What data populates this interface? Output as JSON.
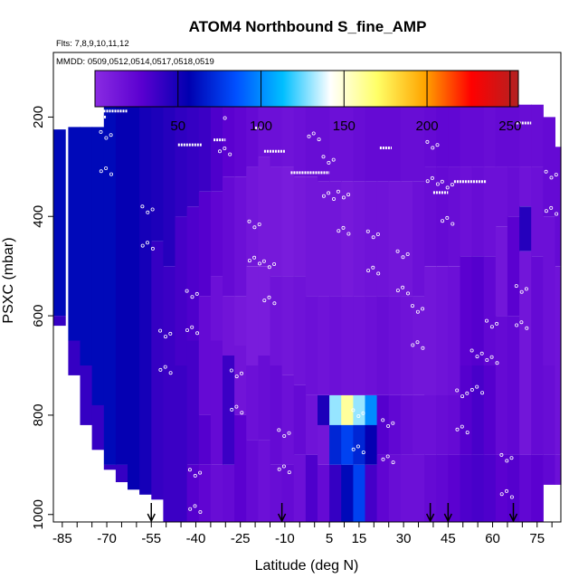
{
  "chart_data": {
    "type": "heatmap",
    "title": "ATOM4 Northbound S_fine_AMP",
    "flights_note": "Flts: 7,8,9,10,11,12",
    "dates_note": "MMDD: 0509,0512,0514,0517,0518,0519",
    "xlabel": "Latitude (deg N)",
    "ylabel": "PSXC (mbar)",
    "xlim": [
      -88,
      83
    ],
    "ylim": [
      1015,
      70
    ],
    "x_ticks": [
      -85,
      -70,
      -55,
      -40,
      -25,
      -10,
      5,
      15,
      30,
      45,
      60,
      75
    ],
    "y_ticks": [
      200,
      400,
      600,
      800,
      1000
    ],
    "colorbar": {
      "range": [
        0,
        255
      ],
      "ticks": [
        50,
        100,
        150,
        200,
        250
      ],
      "colors": [
        "#8a2be2",
        "#5a00d0",
        "#0000b0",
        "#0050ff",
        "#00bfff",
        "#ffffff",
        "#ffff66",
        "#ffa500",
        "#ff0000",
        "#b22222"
      ]
    },
    "arrow_markers_latitude": [
      -55,
      -11,
      39,
      45,
      67
    ],
    "flight_track_points_lat": [
      -70,
      -56,
      -41,
      -26,
      -10,
      5,
      20,
      35,
      50,
      65,
      80,
      -50,
      -30,
      -15,
      10,
      25,
      40,
      55,
      70,
      -40,
      -20,
      0,
      15,
      30,
      45,
      60
    ],
    "flight_track_points_p": [
      300,
      450,
      620,
      780,
      900,
      350,
      500,
      650,
      820,
      950,
      380,
      700,
      260,
      560,
      420,
      880,
      320,
      740,
      610,
      980,
      480,
      230,
      860,
      540,
      400,
      680
    ],
    "flight_level_segments": [
      {
        "lat": [
          -81,
          -70
        ],
        "p": 200
      },
      {
        "lat": [
          -72,
          -63
        ],
        "p": 188
      },
      {
        "lat": [
          -46,
          -38
        ],
        "p": 256
      },
      {
        "lat": [
          -34,
          -30
        ],
        "p": 246
      },
      {
        "lat": [
          -20,
          -18
        ],
        "p": 222
      },
      {
        "lat": [
          -17,
          -10
        ],
        "p": 269
      },
      {
        "lat": [
          -8,
          5
        ],
        "p": 312
      },
      {
        "lat": [
          22,
          26
        ],
        "p": 262
      },
      {
        "lat": [
          40,
          45
        ],
        "p": 352
      },
      {
        "lat": [
          47,
          58
        ],
        "p": 330
      },
      {
        "lat": [
          68,
          73
        ],
        "p": 212
      }
    ],
    "columns": [
      {
        "lat": -88,
        "top": 225,
        "bottom": 620,
        "seg": [
          [
            225,
            60
          ],
          [
            600,
            40
          ]
        ]
      },
      {
        "lat": -83,
        "top": 220,
        "bottom": 720,
        "seg": [
          [
            220,
            60
          ],
          [
            650,
            40
          ]
        ]
      },
      {
        "lat": -79,
        "top": 220,
        "bottom": 820,
        "seg": [
          [
            220,
            60
          ],
          [
            700,
            40
          ]
        ]
      },
      {
        "lat": -75,
        "top": 220,
        "bottom": 870,
        "seg": [
          [
            220,
            60
          ],
          [
            780,
            40
          ]
        ]
      },
      {
        "lat": -71,
        "top": 175,
        "bottom": 910,
        "seg": [
          [
            175,
            60
          ],
          [
            900,
            40
          ]
        ]
      },
      {
        "lat": -67,
        "top": 175,
        "bottom": 935,
        "seg": [
          [
            175,
            55
          ],
          [
            900,
            40
          ]
        ]
      },
      {
        "lat": -63,
        "top": 175,
        "bottom": 950,
        "seg": [
          [
            175,
            55
          ],
          [
            950,
            40
          ]
        ]
      },
      {
        "lat": -59,
        "top": 175,
        "bottom": 960,
        "seg": [
          [
            175,
            50
          ],
          [
            960,
            40
          ]
        ]
      },
      {
        "lat": -55,
        "top": 175,
        "bottom": 970,
        "seg": [
          [
            175,
            48
          ],
          [
            450,
            40
          ]
        ]
      },
      {
        "lat": -51,
        "top": 175,
        "bottom": 1015,
        "seg": [
          [
            175,
            45
          ],
          [
            500,
            38
          ]
        ]
      },
      {
        "lat": -47,
        "top": 175,
        "bottom": 1015,
        "seg": [
          [
            175,
            42
          ],
          [
            400,
            35
          ],
          [
            700,
            38
          ]
        ]
      },
      {
        "lat": -43,
        "top": 175,
        "bottom": 1015,
        "seg": [
          [
            175,
            40
          ],
          [
            380,
            32
          ],
          [
            650,
            35
          ],
          [
            900,
            30
          ]
        ]
      },
      {
        "lat": -39,
        "top": 175,
        "bottom": 1015,
        "seg": [
          [
            175,
            38
          ],
          [
            350,
            30
          ],
          [
            560,
            22
          ],
          [
            800,
            30
          ],
          [
            900,
            25
          ]
        ]
      },
      {
        "lat": -35,
        "top": 175,
        "bottom": 1015,
        "seg": [
          [
            175,
            32
          ],
          [
            350,
            25
          ],
          [
            520,
            18
          ],
          [
            650,
            22
          ],
          [
            900,
            20
          ]
        ]
      },
      {
        "lat": -31,
        "top": 175,
        "bottom": 1015,
        "seg": [
          [
            175,
            28
          ],
          [
            320,
            22
          ],
          [
            560,
            15
          ],
          [
            680,
            38
          ],
          [
            900,
            22
          ]
        ]
      },
      {
        "lat": -27,
        "top": 175,
        "bottom": 1015,
        "seg": [
          [
            175,
            25
          ],
          [
            320,
            18
          ],
          [
            560,
            12
          ],
          [
            660,
            15
          ],
          [
            800,
            28
          ]
        ]
      },
      {
        "lat": -23,
        "top": 175,
        "bottom": 1015,
        "seg": [
          [
            175,
            22
          ],
          [
            300,
            14
          ],
          [
            500,
            10
          ],
          [
            700,
            18
          ],
          [
            850,
            22
          ]
        ]
      },
      {
        "lat": -19,
        "top": 175,
        "bottom": 1015,
        "seg": [
          [
            175,
            18
          ],
          [
            280,
            12
          ],
          [
            500,
            10
          ],
          [
            680,
            20
          ],
          [
            850,
            18
          ]
        ]
      },
      {
        "lat": -15,
        "top": 175,
        "bottom": 1015,
        "seg": [
          [
            175,
            18
          ],
          [
            300,
            12
          ],
          [
            520,
            16
          ],
          [
            700,
            22
          ],
          [
            900,
            20
          ]
        ]
      },
      {
        "lat": -11,
        "top": 175,
        "bottom": 1015,
        "seg": [
          [
            175,
            16
          ],
          [
            300,
            10
          ],
          [
            520,
            14
          ],
          [
            720,
            18
          ],
          [
            900,
            22
          ]
        ]
      },
      {
        "lat": -7,
        "top": 175,
        "bottom": 1015,
        "seg": [
          [
            175,
            18
          ],
          [
            320,
            12
          ],
          [
            520,
            16
          ],
          [
            740,
            22
          ],
          [
            880,
            18
          ]
        ]
      },
      {
        "lat": -3,
        "top": 175,
        "bottom": 1015,
        "seg": [
          [
            175,
            20
          ],
          [
            320,
            14
          ],
          [
            560,
            18
          ],
          [
            760,
            16
          ],
          [
            880,
            32
          ]
        ]
      },
      {
        "lat": 1,
        "top": 175,
        "bottom": 1015,
        "seg": [
          [
            175,
            20
          ],
          [
            330,
            14
          ],
          [
            560,
            16
          ],
          [
            760,
            48
          ],
          [
            820,
            14
          ],
          [
            900,
            22
          ]
        ]
      },
      {
        "lat": 5,
        "top": 175,
        "bottom": 1015,
        "seg": [
          [
            175,
            18
          ],
          [
            330,
            14
          ],
          [
            560,
            18
          ],
          [
            760,
            130
          ],
          [
            820,
            70
          ],
          [
            900,
            40
          ]
        ]
      },
      {
        "lat": 9,
        "top": 175,
        "bottom": 1015,
        "seg": [
          [
            175,
            18
          ],
          [
            330,
            12
          ],
          [
            560,
            16
          ],
          [
            760,
            160
          ],
          [
            820,
            80
          ],
          [
            900,
            60
          ]
        ]
      },
      {
        "lat": 13,
        "top": 175,
        "bottom": 1015,
        "seg": [
          [
            175,
            20
          ],
          [
            330,
            14
          ],
          [
            560,
            16
          ],
          [
            760,
            130
          ],
          [
            820,
            70
          ],
          [
            900,
            80
          ]
        ]
      },
      {
        "lat": 17,
        "top": 175,
        "bottom": 1015,
        "seg": [
          [
            175,
            22
          ],
          [
            330,
            16
          ],
          [
            560,
            18
          ],
          [
            760,
            100
          ],
          [
            820,
            55
          ],
          [
            900,
            35
          ]
        ]
      },
      {
        "lat": 21,
        "top": 175,
        "bottom": 1015,
        "seg": [
          [
            175,
            22
          ],
          [
            330,
            16
          ],
          [
            560,
            20
          ],
          [
            760,
            30
          ],
          [
            880,
            25
          ]
        ]
      },
      {
        "lat": 25,
        "top": 175,
        "bottom": 1015,
        "seg": [
          [
            175,
            22
          ],
          [
            330,
            14
          ],
          [
            560,
            18
          ],
          [
            760,
            24
          ],
          [
            880,
            20
          ]
        ]
      },
      {
        "lat": 29,
        "top": 175,
        "bottom": 1015,
        "seg": [
          [
            175,
            20
          ],
          [
            330,
            14
          ],
          [
            560,
            16
          ],
          [
            760,
            20
          ],
          [
            880,
            18
          ]
        ]
      },
      {
        "lat": 33,
        "top": 175,
        "bottom": 1015,
        "seg": [
          [
            175,
            20
          ],
          [
            330,
            18
          ],
          [
            560,
            14
          ],
          [
            760,
            18
          ],
          [
            880,
            18
          ]
        ]
      },
      {
        "lat": 37,
        "top": 175,
        "bottom": 1015,
        "seg": [
          [
            175,
            22
          ],
          [
            300,
            20
          ],
          [
            500,
            14
          ],
          [
            760,
            18
          ],
          [
            880,
            22
          ]
        ]
      },
      {
        "lat": 41,
        "top": 175,
        "bottom": 1015,
        "seg": [
          [
            175,
            24
          ],
          [
            300,
            22
          ],
          [
            500,
            16
          ],
          [
            760,
            20
          ],
          [
            880,
            24
          ]
        ]
      },
      {
        "lat": 45,
        "top": 175,
        "bottom": 1015,
        "seg": [
          [
            175,
            24
          ],
          [
            300,
            20
          ],
          [
            500,
            18
          ],
          [
            760,
            22
          ],
          [
            880,
            28
          ]
        ]
      },
      {
        "lat": 49,
        "top": 175,
        "bottom": 1015,
        "seg": [
          [
            175,
            22
          ],
          [
            300,
            18
          ],
          [
            480,
            28
          ],
          [
            700,
            30
          ],
          [
            880,
            32
          ]
        ]
      },
      {
        "lat": 53,
        "top": 175,
        "bottom": 1015,
        "seg": [
          [
            175,
            22
          ],
          [
            300,
            20
          ],
          [
            480,
            30
          ],
          [
            700,
            34
          ],
          [
            880,
            34
          ]
        ]
      },
      {
        "lat": 57,
        "top": 175,
        "bottom": 1015,
        "seg": [
          [
            175,
            20
          ],
          [
            300,
            18
          ],
          [
            480,
            24
          ],
          [
            700,
            30
          ],
          [
            880,
            32
          ]
        ]
      },
      {
        "lat": 61,
        "top": 175,
        "bottom": 1015,
        "seg": [
          [
            175,
            22
          ],
          [
            300,
            18
          ],
          [
            420,
            14
          ],
          [
            600,
            22
          ],
          [
            880,
            28
          ]
        ]
      },
      {
        "lat": 65,
        "top": 175,
        "bottom": 1015,
        "seg": [
          [
            175,
            22
          ],
          [
            300,
            20
          ],
          [
            400,
            28
          ],
          [
            600,
            24
          ],
          [
            880,
            30
          ]
        ]
      },
      {
        "lat": 69,
        "top": 175,
        "bottom": 1015,
        "seg": [
          [
            175,
            20
          ],
          [
            300,
            16
          ],
          [
            380,
            45
          ],
          [
            470,
            14
          ],
          [
            880,
            24
          ]
        ]
      },
      {
        "lat": 73,
        "top": 175,
        "bottom": 1015,
        "seg": [
          [
            175,
            20
          ],
          [
            300,
            18
          ],
          [
            480,
            22
          ],
          [
            880,
            28
          ]
        ]
      },
      {
        "lat": 77,
        "top": 200,
        "bottom": 940,
        "seg": [
          [
            200,
            22
          ],
          [
            400,
            18
          ],
          [
            700,
            20
          ],
          [
            880,
            24
          ]
        ]
      },
      {
        "lat": 81,
        "top": 260,
        "bottom": 940,
        "seg": [
          [
            260,
            22
          ],
          [
            500,
            16
          ],
          [
            880,
            18
          ]
        ]
      }
    ]
  }
}
